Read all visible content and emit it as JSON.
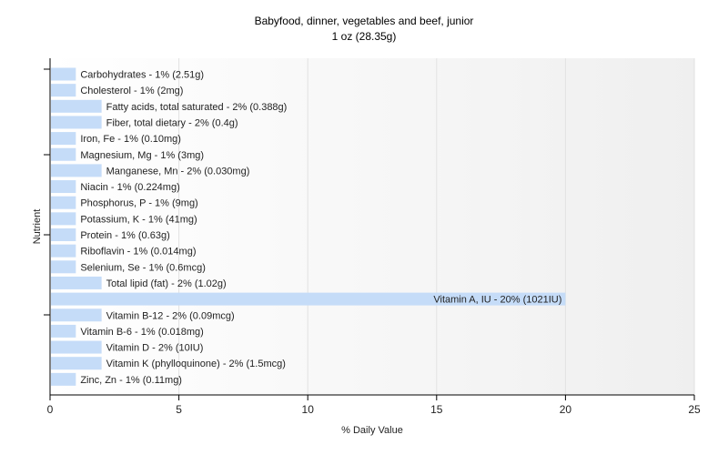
{
  "chart_data": {
    "type": "bar",
    "orientation": "horizontal",
    "title": "Babyfood, dinner, vegetables and beef, junior",
    "subtitle": "1 oz (28.35g)",
    "xlabel": "% Daily Value",
    "ylabel": "Nutrient",
    "xlim": [
      0,
      25
    ],
    "xticks": [
      "0",
      "5",
      "10",
      "15",
      "20",
      "25"
    ],
    "grid": true,
    "bar_color": "#c5dcf8",
    "categories": [
      "Carbohydrates",
      "Cholesterol",
      "Fatty acids, total saturated",
      "Fiber, total dietary",
      "Iron, Fe",
      "Magnesium, Mg",
      "Manganese, Mn",
      "Niacin",
      "Phosphorus, P",
      "Potassium, K",
      "Protein",
      "Riboflavin",
      "Selenium, Se",
      "Total lipid (fat)",
      "Vitamin A, IU",
      "Vitamin B-12",
      "Vitamin B-6",
      "Vitamin D",
      "Vitamin K (phylloquinone)",
      "Zinc, Zn"
    ],
    "values": [
      1,
      1,
      2,
      2,
      1,
      1,
      2,
      1,
      1,
      1,
      1,
      1,
      1,
      2,
      20,
      2,
      1,
      2,
      2,
      1
    ],
    "labels": [
      "Carbohydrates - 1% (2.51g)",
      "Cholesterol - 1% (2mg)",
      "Fatty acids, total saturated - 2% (0.388g)",
      "Fiber, total dietary - 2% (0.4g)",
      "Iron, Fe - 1% (0.10mg)",
      "Magnesium, Mg - 1% (3mg)",
      "Manganese, Mn - 2% (0.030mg)",
      "Niacin - 1% (0.224mg)",
      "Phosphorus, P - 1% (9mg)",
      "Potassium, K - 1% (41mg)",
      "Protein - 1% (0.63g)",
      "Riboflavin - 1% (0.014mg)",
      "Selenium, Se - 1% (0.6mcg)",
      "Total lipid (fat) - 2% (1.02g)",
      "Vitamin A, IU - 20% (1021IU)",
      "Vitamin B-12 - 2% (0.09mcg)",
      "Vitamin B-6 - 1% (0.018mg)",
      "Vitamin D - 2% (10IU)",
      "Vitamin K (phylloquinone) - 2% (1.5mcg)",
      "Zinc, Zn - 1% (0.11mg)"
    ]
  }
}
